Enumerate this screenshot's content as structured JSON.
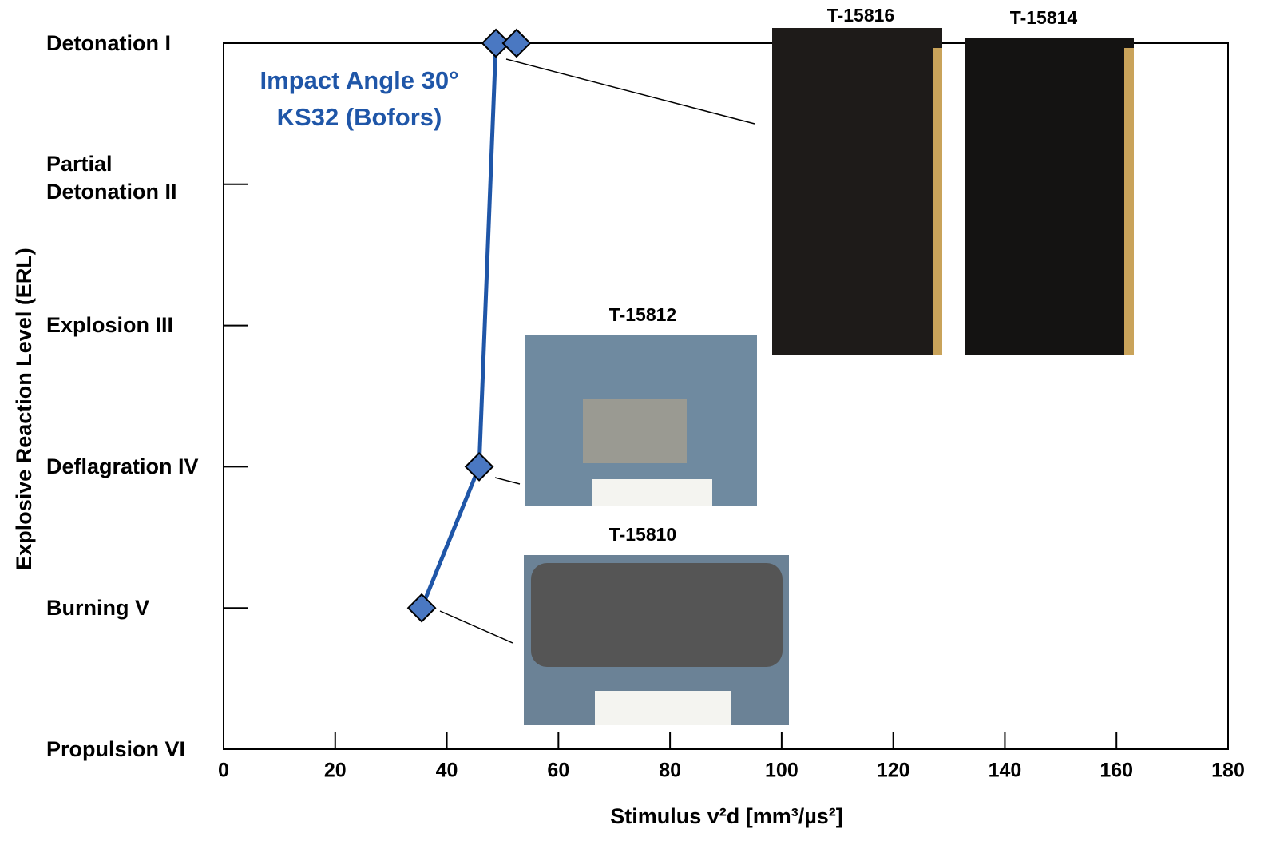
{
  "chart_data": {
    "type": "line",
    "annotation": [
      "Impact Angle 30°",
      "KS32 (Bofors)"
    ],
    "x_label": "Stimulus v²d [mm³/µs²]",
    "y_label": "Explosive Reaction Level (ERL)",
    "xlim": [
      0,
      180
    ],
    "xticks": [
      0,
      20,
      40,
      60,
      80,
      100,
      120,
      140,
      160,
      180
    ],
    "ylim": [
      6,
      1
    ],
    "yticks": [
      {
        "value": 1,
        "label": "Detonation I"
      },
      {
        "value": 2,
        "label": "Partial\nDetonation II"
      },
      {
        "value": 3,
        "label": "Explosion III"
      },
      {
        "value": 4,
        "label": "Deflagration IV"
      },
      {
        "value": 5,
        "label": "Burning V"
      },
      {
        "value": 6,
        "label": "Propulsion VI"
      }
    ],
    "series": [
      {
        "color": "#1f56a8",
        "marker_color": "#4a78c2",
        "x": [
          35.5,
          45.8,
          48.8,
          52.5
        ],
        "values": [
          5,
          4,
          1,
          1
        ]
      }
    ],
    "images": [
      {
        "label": "T-15816"
      },
      {
        "label": "T-15814"
      },
      {
        "label": "T-15812"
      },
      {
        "label": "T-15810"
      }
    ]
  }
}
